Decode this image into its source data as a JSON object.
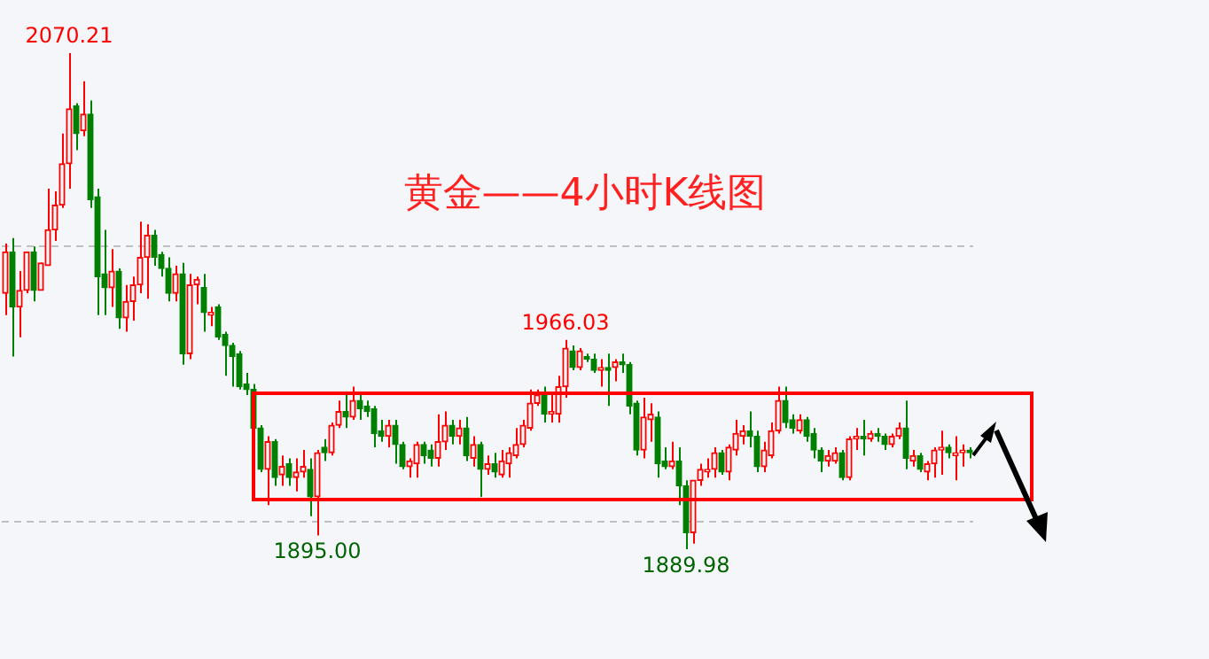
{
  "chart_data": {
    "type": "candlestick",
    "title": "黄金——4小时K线图",
    "annotations": [
      {
        "text": "2070.21",
        "y": 2070.21
      },
      {
        "text": "1966.03",
        "y": 1966.03
      },
      {
        "text": "1895.00",
        "y": 1895.0
      },
      {
        "text": "1889.98",
        "y": 1889.98
      }
    ],
    "categories": [
      null,
      null,
      null,
      null,
      null,
      null,
      null,
      null,
      null,
      null,
      null,
      null,
      null,
      null,
      null,
      null,
      null,
      null,
      null,
      null,
      null,
      null,
      null,
      null,
      null,
      null,
      null,
      null,
      null,
      null,
      null,
      null,
      null,
      null,
      null,
      null,
      null,
      null,
      null,
      null,
      null,
      null,
      null,
      null,
      null,
      null,
      null,
      null,
      null,
      null,
      null,
      null,
      null,
      null,
      null,
      null,
      null,
      null,
      null,
      null,
      null,
      null,
      null,
      null,
      null,
      null,
      null,
      null,
      null,
      null,
      null,
      null,
      null,
      null,
      null,
      null,
      null,
      null,
      null,
      null,
      null,
      null,
      null,
      null,
      null,
      null,
      null,
      null,
      null,
      null,
      null,
      null,
      null,
      null,
      null,
      null,
      null,
      null,
      null,
      null,
      null,
      null,
      null,
      null,
      null,
      null,
      null,
      null,
      null,
      null,
      null,
      null,
      null,
      null,
      null,
      null,
      null,
      null,
      null,
      null,
      null,
      null,
      null,
      null,
      null,
      null,
      null,
      null,
      null,
      null,
      null,
      null,
      null,
      null,
      null,
      null,
      null
    ],
    "ohlc": [
      [
        1983,
        2001,
        1975,
        1998
      ],
      [
        1998,
        2003,
        1960,
        1978
      ],
      [
        1978,
        1991,
        1967,
        1984
      ],
      [
        1984,
        1998,
        1983,
        1998
      ],
      [
        1998,
        2000,
        1980,
        1984
      ],
      [
        1984,
        1994,
        1984,
        1994
      ],
      [
        1993,
        2021,
        1993,
        2006
      ],
      [
        2006,
        2020,
        2002,
        2015
      ],
      [
        2015,
        2041,
        2014,
        2030
      ],
      [
        2030,
        2070.21,
        2021,
        2050
      ],
      [
        2051,
        2052,
        2035,
        2041
      ],
      [
        2042,
        2060,
        2040,
        2048
      ],
      [
        2048,
        2053,
        2014,
        2017
      ],
      [
        2018,
        2021,
        1975,
        1989
      ],
      [
        1990,
        2006,
        1975,
        1985
      ],
      [
        1985,
        1999,
        1978,
        1991
      ],
      [
        1991,
        1992,
        1970,
        1974
      ],
      [
        1974,
        1986,
        1969,
        1980
      ],
      [
        1980,
        1989,
        1973,
        1986
      ],
      [
        1986,
        2009,
        1983,
        1996
      ],
      [
        1996,
        2008,
        1981,
        2004
      ],
      [
        2004,
        2006,
        1993,
        1996
      ],
      [
        1997,
        1998,
        1989,
        1992
      ],
      [
        1992,
        1996,
        1980,
        1983
      ],
      [
        1983,
        1993,
        1980,
        1990
      ],
      [
        1990,
        1994,
        1957,
        1961
      ],
      [
        1961,
        1990,
        1959,
        1986
      ],
      [
        1986,
        1989,
        1979,
        1988
      ],
      [
        1985,
        1990,
        1969,
        1976
      ],
      [
        1975,
        1978,
        1971,
        1976
      ],
      [
        1978,
        1979,
        1966,
        1967
      ],
      [
        1968,
        1969,
        1953,
        1964
      ],
      [
        1964,
        1965,
        1949,
        1960
      ],
      [
        1961,
        1962,
        1948,
        1949
      ],
      [
        1950,
        1954,
        1946,
        1948
      ],
      [
        1948,
        1950,
        1933,
        1934
      ],
      [
        1934,
        1935,
        1918,
        1919
      ],
      [
        1919,
        1931,
        1906,
        1929
      ],
      [
        1929,
        1930,
        1913,
        1916
      ],
      [
        1917,
        1924,
        1913,
        1920
      ],
      [
        1921,
        1923,
        1913,
        1916
      ],
      [
        1916,
        1923,
        1911,
        1918
      ],
      [
        1918,
        1926,
        1916,
        1920
      ],
      [
        1919,
        1923,
        1902,
        1909
      ],
      [
        1909,
        1926,
        1895.0,
        1925
      ],
      [
        1927,
        1930,
        1922,
        1925
      ],
      [
        1925,
        1936,
        1924,
        1935
      ],
      [
        1935,
        1944,
        1934,
        1940
      ],
      [
        1940,
        1946,
        1934,
        1938
      ],
      [
        1938,
        1949,
        1937,
        1944
      ],
      [
        1944,
        1946,
        1937,
        1941
      ],
      [
        1942,
        1944,
        1938,
        1940
      ],
      [
        1941,
        1942,
        1927,
        1932
      ],
      [
        1933,
        1937,
        1929,
        1931
      ],
      [
        1931,
        1937,
        1927,
        1935
      ],
      [
        1935,
        1937,
        1921,
        1928
      ],
      [
        1928,
        1929,
        1919,
        1920
      ],
      [
        1920,
        1923,
        1916,
        1922
      ],
      [
        1921,
        1929,
        1916,
        1928
      ],
      [
        1928,
        1929,
        1921,
        1924
      ],
      [
        1926,
        1928,
        1920,
        1923
      ],
      [
        1923,
        1939,
        1920,
        1929
      ],
      [
        1929,
        1940,
        1926,
        1935
      ],
      [
        1935,
        1937,
        1928,
        1931
      ],
      [
        1931,
        1937,
        1928,
        1934
      ],
      [
        1934,
        1938,
        1922,
        1924
      ],
      [
        1923,
        1931,
        1920,
        1928
      ],
      [
        1928,
        1929,
        1909,
        1919
      ],
      [
        1919,
        1924,
        1917,
        1921
      ],
      [
        1921,
        1925,
        1916,
        1918
      ],
      [
        1917,
        1926,
        1916,
        1922
      ],
      [
        1921,
        1927,
        1916,
        1925
      ],
      [
        1924,
        1934,
        1923,
        1928
      ],
      [
        1928,
        1937,
        1927,
        1935
      ],
      [
        1934,
        1948,
        1933,
        1943
      ],
      [
        1943,
        1948,
        1942,
        1946
      ],
      [
        1946,
        1949,
        1936,
        1939
      ],
      [
        1939,
        1947,
        1936,
        1940
      ],
      [
        1939,
        1953,
        1936,
        1949
      ],
      [
        1949,
        1966.03,
        1945,
        1963
      ],
      [
        1962,
        1964,
        1955,
        1956
      ],
      [
        1956,
        1963,
        1955,
        1962
      ],
      [
        1960,
        1961,
        1958,
        1959
      ],
      [
        1959,
        1961,
        1954,
        1955
      ],
      [
        1955,
        1959,
        1949,
        1956
      ],
      [
        1956,
        1961,
        1942,
        1955
      ],
      [
        1956,
        1959,
        1951,
        1958
      ],
      [
        1958,
        1961,
        1954,
        1957
      ],
      [
        1957,
        1958,
        1939,
        1942
      ],
      [
        1943,
        1944,
        1924,
        1926
      ],
      [
        1926,
        1945,
        1923,
        1938
      ],
      [
        1937,
        1943,
        1929,
        1939
      ],
      [
        1938,
        1940,
        1916,
        1921
      ],
      [
        1922,
        1927,
        1919,
        1920
      ],
      [
        1920,
        1929,
        1919,
        1922
      ],
      [
        1922,
        1927,
        1906,
        1913
      ],
      [
        1913,
        1915,
        1889.98,
        1896
      ],
      [
        1896,
        1915,
        1892,
        1915
      ],
      [
        1915,
        1921,
        1913,
        1919
      ],
      [
        1918,
        1923,
        1916,
        1919
      ],
      [
        1919,
        1927,
        1916,
        1925
      ],
      [
        1925,
        1926,
        1917,
        1918
      ],
      [
        1918,
        1928,
        1915,
        1927
      ],
      [
        1926,
        1937,
        1924,
        1932
      ],
      [
        1931,
        1935,
        1928,
        1933
      ],
      [
        1933,
        1940,
        1927,
        1931
      ],
      [
        1931,
        1933,
        1918,
        1920
      ],
      [
        1920,
        1929,
        1918,
        1926
      ],
      [
        1924,
        1936,
        1923,
        1933
      ],
      [
        1933,
        1949,
        1932,
        1944
      ],
      [
        1944,
        1949,
        1934,
        1936
      ],
      [
        1937,
        1939,
        1932,
        1934
      ],
      [
        1933,
        1939,
        1932,
        1937
      ],
      [
        1937,
        1938,
        1929,
        1931
      ],
      [
        1932,
        1934,
        1923,
        1926
      ],
      [
        1926,
        1927,
        1918,
        1922
      ],
      [
        1922,
        1926,
        1920,
        1924
      ],
      [
        1922,
        1927,
        1921,
        1925
      ],
      [
        1925,
        1926,
        1915,
        1916
      ],
      [
        1916,
        1931,
        1915,
        1930
      ],
      [
        1930,
        1934,
        1926,
        1931
      ],
      [
        1931,
        1937,
        1924,
        1930
      ],
      [
        1930,
        1933,
        1929,
        1932
      ],
      [
        1932,
        1934,
        1929,
        1931
      ],
      [
        1931,
        1932,
        1926,
        1928
      ],
      [
        1928,
        1932,
        1927,
        1931
      ],
      [
        1931,
        1936,
        1930,
        1934
      ],
      [
        1934,
        1944,
        1919,
        1923
      ],
      [
        1922,
        1926,
        1920,
        1924
      ],
      [
        1924,
        1925,
        1918,
        1919
      ],
      [
        1918,
        1922,
        1915,
        1921
      ],
      [
        1921,
        1927,
        1916,
        1926
      ],
      [
        1926,
        1933,
        1917,
        1927
      ],
      [
        1927,
        1928,
        1923,
        1925
      ],
      [
        1924,
        1931,
        1915,
        1925
      ],
      [
        1925,
        1928,
        1920,
        1926
      ],
      [
        1926,
        1927,
        1923,
        1925
      ]
    ],
    "colors": [
      "#ff0000",
      "#008000",
      "#ff0000",
      "#ff0000",
      "#008000",
      "#ff0000",
      "#ff0000",
      "#ff0000",
      "#ff0000",
      "#ff0000",
      "#008000",
      "#ff0000",
      "#008000",
      "#008000",
      "#008000",
      "#ff0000",
      "#008000",
      "#ff0000",
      "#ff0000",
      "#ff0000",
      "#ff0000",
      "#008000",
      "#008000",
      "#008000",
      "#ff0000",
      "#008000",
      "#ff0000",
      "#ff0000",
      "#008000",
      "#ff0000",
      "#008000",
      "#008000",
      "#008000",
      "#008000",
      "#008000",
      "#008000",
      "#008000",
      "#ff0000",
      "#008000",
      "#ff0000",
      "#008000",
      "#ff0000",
      "#ff0000",
      "#008000",
      "#ff0000",
      "#008000",
      "#ff0000",
      "#ff0000",
      "#008000",
      "#ff0000",
      "#008000",
      "#008000",
      "#008000",
      "#008000",
      "#ff0000",
      "#008000",
      "#008000",
      "#ff0000",
      "#ff0000",
      "#008000",
      "#008000",
      "#ff0000",
      "#ff0000",
      "#008000",
      "#ff0000",
      "#008000",
      "#ff0000",
      "#008000",
      "#ff0000",
      "#008000",
      "#ff0000",
      "#ff0000",
      "#ff0000",
      "#ff0000",
      "#ff0000",
      "#ff0000",
      "#008000",
      "#ff0000",
      "#ff0000",
      "#ff0000",
      "#008000",
      "#ff0000",
      "#008000",
      "#008000",
      "#ff0000",
      "#008000",
      "#ff0000",
      "#008000",
      "#008000",
      "#008000",
      "#ff0000",
      "#ff0000",
      "#008000",
      "#008000",
      "#ff0000",
      "#008000",
      "#008000",
      "#ff0000",
      "#ff0000",
      "#ff0000",
      "#ff0000",
      "#008000",
      "#ff0000",
      "#ff0000",
      "#ff0000",
      "#008000",
      "#008000",
      "#ff0000",
      "#ff0000",
      "#ff0000",
      "#008000",
      "#008000",
      "#ff0000",
      "#008000",
      "#008000",
      "#008000",
      "#ff0000",
      "#ff0000",
      "#008000",
      "#ff0000",
      "#ff0000",
      "#008000",
      "#ff0000",
      "#008000",
      "#008000",
      "#ff0000",
      "#ff0000",
      "#008000",
      "#ff0000",
      "#008000",
      "#ff0000",
      "#ff0000",
      "#ff0000",
      "#008000",
      "#ff0000",
      "#ff0000",
      "#008000"
    ],
    "yticks": [
      {
        "value": 1900,
        "label": null
      },
      {
        "value": 2000,
        "label": null
      }
    ],
    "grid": "y"
  }
}
